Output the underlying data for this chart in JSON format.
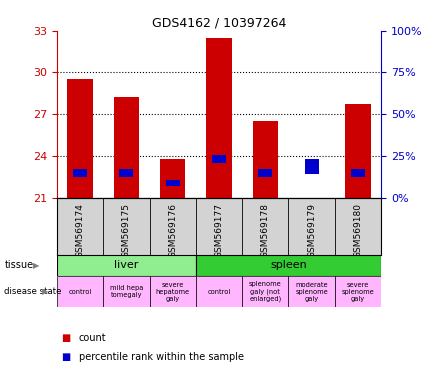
{
  "title": "GDS4162 / 10397264",
  "samples": [
    "GSM569174",
    "GSM569175",
    "GSM569176",
    "GSM569177",
    "GSM569178",
    "GSM569179",
    "GSM569180"
  ],
  "count_values": [
    29.5,
    28.2,
    23.8,
    32.5,
    26.5,
    21.0,
    27.7
  ],
  "percentile_values": [
    22.5,
    22.5,
    21.8,
    23.5,
    22.5,
    22.7,
    22.5
  ],
  "percentile_bar_heights": [
    0.55,
    0.55,
    0.45,
    0.55,
    0.55,
    1.1,
    0.55
  ],
  "ylim_left": [
    21,
    33
  ],
  "ylim_right": [
    0,
    100
  ],
  "yticks_left": [
    21,
    24,
    27,
    30,
    33
  ],
  "yticks_right": [
    0,
    25,
    50,
    75,
    100
  ],
  "tissue_groups": [
    {
      "label": "liver",
      "span": [
        0,
        3
      ],
      "color": "#90EE90"
    },
    {
      "label": "spleen",
      "span": [
        3,
        7
      ],
      "color": "#33CC33"
    }
  ],
  "disease_states": [
    {
      "label": "control",
      "span": [
        0,
        1
      ],
      "color": "#FFB6FF"
    },
    {
      "label": "mild hepa\ntomegaly",
      "span": [
        1,
        2
      ],
      "color": "#FFB6FF"
    },
    {
      "label": "severe\nhepatome\ngaly",
      "span": [
        2,
        3
      ],
      "color": "#FFB6FF"
    },
    {
      "label": "control",
      "span": [
        3,
        4
      ],
      "color": "#FFB6FF"
    },
    {
      "label": "splenome\ngaly (not\nenlarged)",
      "span": [
        4,
        5
      ],
      "color": "#FFB6FF"
    },
    {
      "label": "moderate\nsplenome\ngaly",
      "span": [
        5,
        6
      ],
      "color": "#FFB6FF"
    },
    {
      "label": "severe\nsplenome\ngaly",
      "span": [
        6,
        7
      ],
      "color": "#FFB6FF"
    }
  ],
  "bar_color": "#CC0000",
  "percentile_color": "#0000CC",
  "background_color": "#ffffff",
  "left_axis_color": "#CC0000",
  "right_axis_color": "#0000CC",
  "tick_label_bg": "#D3D3D3"
}
